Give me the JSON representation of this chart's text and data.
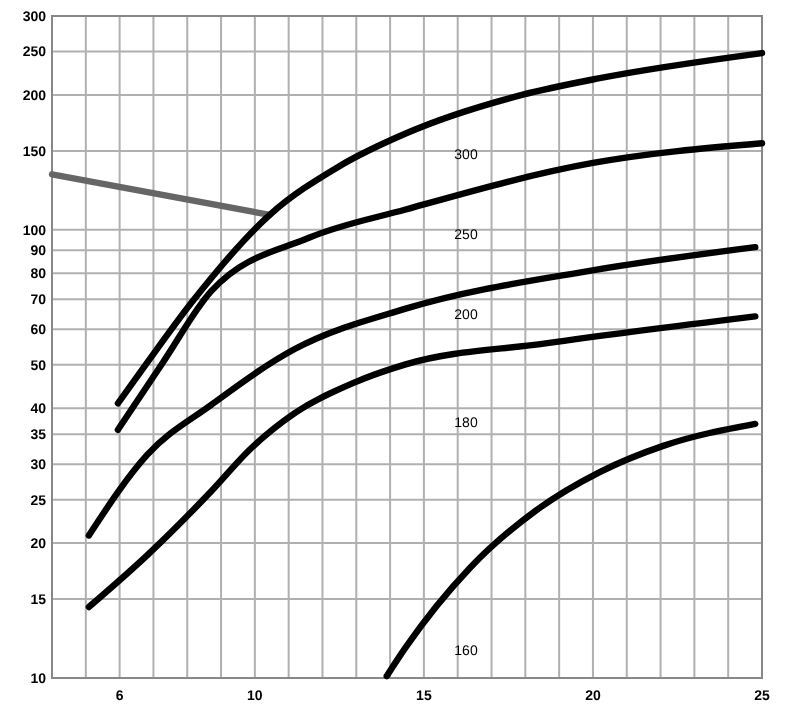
{
  "chart_data": {
    "type": "line",
    "log": "y",
    "grid": true,
    "marker": "none",
    "line_style": "solid",
    "xlim": [
      4,
      25
    ],
    "xticks": [
      {
        "value": 4,
        "label": null
      },
      {
        "value": 5,
        "label": null
      },
      6,
      {
        "value": 7,
        "label": null
      },
      {
        "value": 8,
        "label": null
      },
      {
        "value": 9,
        "label": null
      },
      10,
      {
        "value": 11,
        "label": null
      },
      {
        "value": 12,
        "label": null
      },
      {
        "value": 13,
        "label": null
      },
      {
        "value": 14,
        "label": null
      },
      15,
      {
        "value": 16,
        "label": null
      },
      {
        "value": 17,
        "label": null
      },
      {
        "value": 18,
        "label": null
      },
      {
        "value": 19,
        "label": null
      },
      20,
      {
        "value": 21,
        "label": null
      },
      {
        "value": 22,
        "label": null
      },
      {
        "value": 23,
        "label": null
      },
      {
        "value": 24,
        "label": null
      },
      25
    ],
    "ylim": [
      10,
      300
    ],
    "yticks": [
      10,
      15,
      20,
      25,
      30,
      35,
      40,
      50,
      60,
      70,
      80,
      90,
      100,
      150,
      200,
      250,
      300
    ],
    "series": [
      {
        "color": "#666666",
        "x": [
          4,
          10.44
        ],
        "values": [
          133,
          108
        ]
      },
      {
        "color": "#000000",
        "x": [
          5.95,
          6.82,
          8.14,
          10.44,
          12.45,
          14.46,
          17.9,
          20.2,
          25
        ],
        "values": [
          41,
          50.6,
          69,
          108,
          138,
          164,
          200,
          218,
          248
        ]
      },
      {
        "color": "#000000",
        "x": [
          5.95,
          7.28,
          8.71,
          11.6,
          14.46,
          20.0,
          25
        ],
        "values": [
          35.8,
          50.6,
          73,
          96,
          111,
          141,
          156
        ]
      },
      {
        "color": "#000000",
        "x": [
          5.09,
          6.82,
          8.71,
          11.18,
          14.46,
          20.03,
          24.8
        ],
        "values": [
          20.8,
          31.5,
          40.7,
          54.2,
          66.7,
          81.3,
          91.5
        ]
      },
      {
        "color": "#000000",
        "x": [
          5.09,
          6.82,
          8.71,
          9.86,
          11.18,
          12.9,
          14.46,
          18.6,
          24.8
        ],
        "values": [
          14.4,
          18.8,
          26.1,
          32.4,
          39,
          45.5,
          50.1,
          55.8,
          64.1
        ]
      },
      {
        "color": "#000000",
        "x": [
          13.9,
          14.46,
          16.36,
          18.3,
          20.2,
          22.1,
          24.8
        ],
        "values": [
          10.1,
          11.7,
          17.6,
          23.6,
          28.8,
          33.0,
          36.9
        ]
      }
    ],
    "annotations": [
      "300",
      "250",
      "200",
      "180",
      "160"
    ]
  }
}
